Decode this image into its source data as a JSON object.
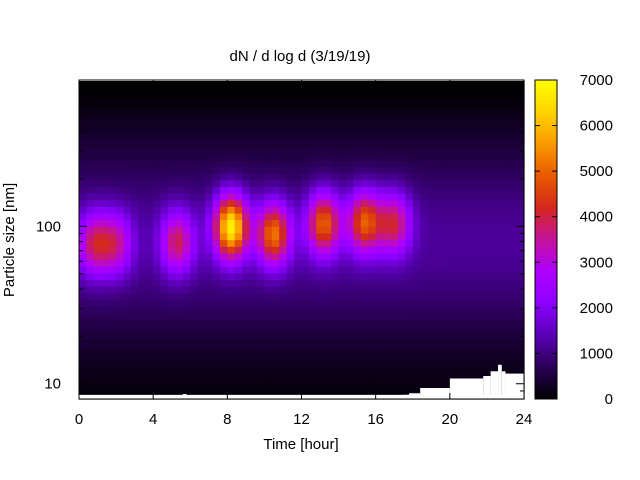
{
  "chart_data": {
    "type": "heatmap",
    "title": "dN / d log d (3/19/19)",
    "xlabel": "Time [hour]",
    "ylabel": "Particle size [nm]",
    "x_range": [
      0,
      24
    ],
    "x_ticks": [
      0,
      4,
      8,
      12,
      16,
      20,
      24
    ],
    "y_scale": "log",
    "y_range": [
      8,
      850
    ],
    "y_ticks": [
      10,
      100
    ],
    "colorbar": {
      "range": [
        0,
        7000
      ],
      "ticks": [
        0,
        1000,
        2000,
        3000,
        4000,
        5000,
        6000,
        7000
      ],
      "palette": [
        "#000000",
        "#2a0057",
        "#5a00b5",
        "#8c00ff",
        "#b000ff",
        "#c4129b",
        "#d4281c",
        "#e85a00",
        "#fa9a00",
        "#ffd400",
        "#ffff00"
      ]
    },
    "background_level": 1200,
    "peak_size_nm": 80,
    "events": [
      {
        "t": 0.8,
        "d": 78,
        "value": 3700
      },
      {
        "t": 2.0,
        "d": 78,
        "value": 3400
      },
      {
        "t": 5.3,
        "d": 80,
        "value": 3900
      },
      {
        "t": 8.2,
        "d": 100,
        "value": 6800
      },
      {
        "t": 10.5,
        "d": 90,
        "value": 5200
      },
      {
        "t": 13.2,
        "d": 105,
        "value": 5000
      },
      {
        "t": 15.4,
        "d": 108,
        "value": 4900
      },
      {
        "t": 17.0,
        "d": 105,
        "value": 4000
      }
    ],
    "missing_data": [
      {
        "t_start": 5.6,
        "t_end": 5.8,
        "d_max": 8.6
      },
      {
        "t_start": 17.4,
        "t_end": 17.8,
        "d_max": 8.5
      },
      {
        "t_start": 17.8,
        "t_end": 18.4,
        "d_max": 8.7
      },
      {
        "t_start": 18.4,
        "t_end": 19.2,
        "d_max": 9.4
      },
      {
        "t_start": 19.2,
        "t_end": 20.0,
        "d_max": 9.4
      },
      {
        "t_start": 20.0,
        "t_end": 21.8,
        "d_max": 10.8
      },
      {
        "t_start": 21.8,
        "t_end": 22.2,
        "d_max": 11.2
      },
      {
        "t_start": 22.2,
        "t_end": 22.6,
        "d_max": 12.0
      },
      {
        "t_start": 22.6,
        "t_end": 22.8,
        "d_max": 13.2
      },
      {
        "t_start": 22.8,
        "t_end": 23.0,
        "d_max": 12.0
      },
      {
        "t_start": 23.0,
        "t_end": 24.0,
        "d_max": 11.6
      }
    ]
  }
}
